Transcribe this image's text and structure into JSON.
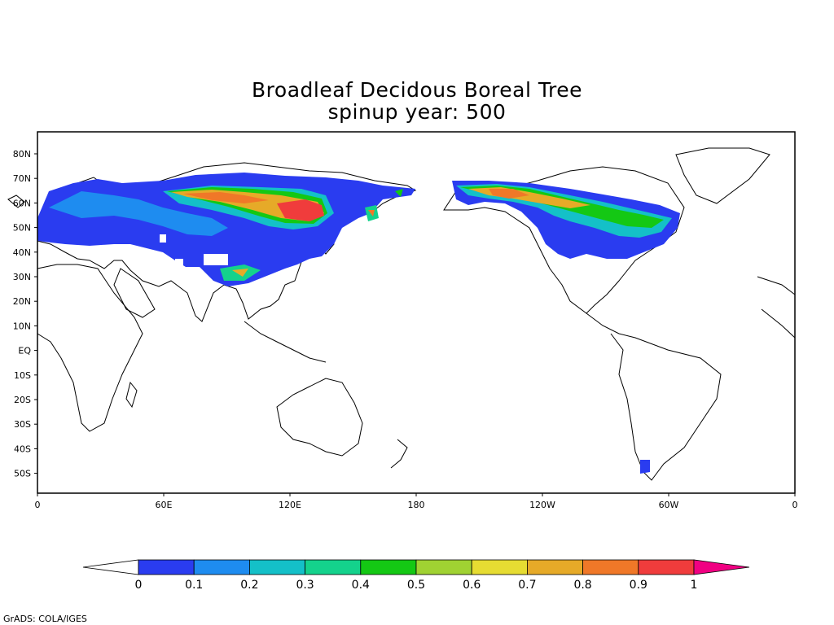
{
  "title": "Broadleaf Decidous Boreal Tree",
  "subtitle": "spinup year: 500",
  "map": {
    "lat_ticks": [
      "80N",
      "70N",
      "60N",
      "50N",
      "40N",
      "30N",
      "20N",
      "10N",
      "EQ",
      "10S",
      "20S",
      "30S",
      "40S",
      "50S"
    ],
    "lon_ticks": [
      "0",
      "60E",
      "120E",
      "180",
      "120W",
      "60W",
      "0"
    ]
  },
  "colorbar": {
    "labels": [
      "0",
      "0.1",
      "0.2",
      "0.3",
      "0.4",
      "0.5",
      "0.6",
      "0.7",
      "0.8",
      "0.9",
      "1"
    ],
    "colors": [
      "#ffffff",
      "#2a3cf0",
      "#1e8cf0",
      "#14c0c8",
      "#14d28c",
      "#14c814",
      "#a0d232",
      "#e6dc32",
      "#e6aa28",
      "#f07828",
      "#f03c3c",
      "#f00082"
    ]
  },
  "credit": "GrADS: COLA/IGES"
}
